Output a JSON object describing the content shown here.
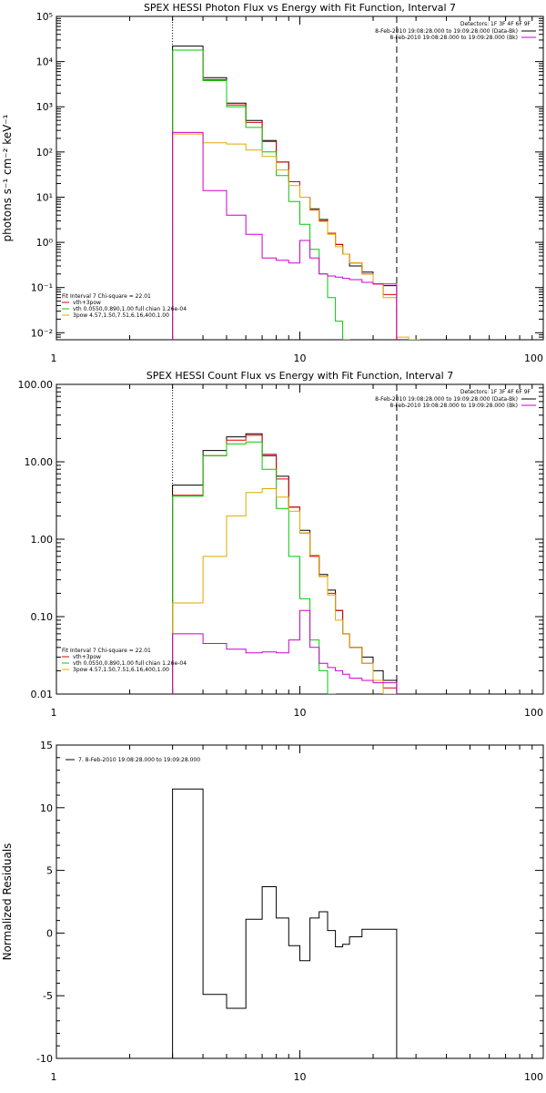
{
  "chart_data": [
    {
      "type": "line",
      "title": "SPEX HESSI Photon Flux vs Energy with Fit Function, Interval 7",
      "xlabel": "",
      "ylabel": "photons s⁻¹ cm⁻² keV⁻¹",
      "xscale": "log",
      "yscale": "log",
      "xlim": [
        1,
        100
      ],
      "ylim": [
        0.007,
        100000
      ],
      "xticks": [
        "1",
        "10",
        "100"
      ],
      "yticks": [
        "10⁻²",
        "10⁻¹",
        "10⁰",
        "10¹",
        "10²",
        "10³",
        "10⁴",
        "10⁵"
      ],
      "detectors_label": "Detectors: 1F 3F 4F 6F 9F",
      "vlines": [
        {
          "x": 3.0,
          "style": "dotted"
        },
        {
          "x": 25.0,
          "style": "dashed"
        }
      ],
      "legend_topright": [
        {
          "label": "8-Feb-2010 19:08:28.000 to 19:09:28.000 (Data-Bk)",
          "color": "#000000"
        },
        {
          "label": "8-Feb-2010 19:08:28.000 to 19:09:28.000 (Bk)",
          "color": "#cc00cc"
        }
      ],
      "legend_bottomleft": [
        {
          "label": "Fit Interval 7   Chi-square = 22.01",
          "color": null
        },
        {
          "label": "vth+3pow",
          "color": "#dd0000"
        },
        {
          "label": "vth 0.0550,0.890,1.00  full chian 1.26e-04",
          "color": "#00cc00"
        },
        {
          "label": "3pow 4.57,1.50,7.51,6.16,400,1.00",
          "color": "#ddaa00"
        }
      ],
      "bin_edges": [
        3.0,
        4.0,
        5.0,
        6.0,
        7.0,
        8.0,
        9.0,
        10.0,
        11.0,
        12.0,
        13.0,
        14.0,
        15.0,
        16.0,
        18.0,
        20.0,
        22.0,
        25.0,
        28.0,
        31.0
      ],
      "series": [
        {
          "name": "Data-Bk",
          "color": "#000000",
          "values": [
            22000,
            4400,
            1200,
            500,
            180,
            60,
            22,
            10,
            5.5,
            3.2,
            1.6,
            0.9,
            0.55,
            0.3,
            0.22,
            0.12,
            0.11
          ]
        },
        {
          "name": "vth+3pow",
          "color": "#dd0000",
          "values": [
            18000,
            4000,
            1100,
            450,
            170,
            60,
            22,
            10,
            5.2,
            3.0,
            1.6,
            0.9,
            0.55,
            0.35,
            0.2,
            0.12,
            0.07
          ]
        },
        {
          "name": "vth",
          "color": "#00cc00",
          "values": [
            18000,
            3800,
            1000,
            350,
            100,
            30,
            8,
            2.5,
            0.7,
            0.2,
            0.06,
            0.018,
            0.007,
            null,
            null,
            null,
            null
          ]
        },
        {
          "name": "3pow",
          "color": "#ddaa00",
          "values": [
            250,
            160,
            150,
            110,
            80,
            40,
            18,
            10,
            5.3,
            2.9,
            1.5,
            0.8,
            0.55,
            0.35,
            0.2,
            0.12,
            0.06,
            0.008,
            0.007
          ]
        },
        {
          "name": "Bk",
          "color": "#cc00cc",
          "values": [
            270,
            14,
            4,
            1.5,
            0.45,
            0.4,
            0.35,
            1.1,
            0.45,
            0.2,
            0.18,
            0.17,
            0.16,
            0.15,
            0.13,
            0.12,
            0.12
          ]
        }
      ]
    },
    {
      "type": "line",
      "title": "SPEX HESSI Count Flux vs Energy with Fit Function, Interval 7",
      "xlabel": "",
      "ylabel": "",
      "xscale": "log",
      "yscale": "log",
      "xlim": [
        1,
        100
      ],
      "ylim": [
        0.01,
        100
      ],
      "xticks": [
        "1",
        "10",
        "100"
      ],
      "yticks": [
        "0.01",
        "0.10",
        "1.00",
        "10.00",
        "100.00"
      ],
      "detectors_label": "Detectors: 1F 3F 4F 6F 9F",
      "vlines": [
        {
          "x": 3.0,
          "style": "dotted"
        },
        {
          "x": 25.0,
          "style": "dashed"
        }
      ],
      "legend_topright": [
        {
          "label": "8-Feb-2010 19:08:28.000 to 19:09:28.000 (Data-Bk)",
          "color": "#000000"
        },
        {
          "label": "8-Feb-2010 19:08:28.000 to 19:09:28.000 (Bk)",
          "color": "#cc00cc"
        }
      ],
      "legend_bottomleft": [
        {
          "label": "Fit Interval 7   Chi-square = 22.01",
          "color": null
        },
        {
          "label": "vth+3pow",
          "color": "#dd0000"
        },
        {
          "label": "vth 0.0550,0.890,1.00  full chian 1.26e-04",
          "color": "#00cc00"
        },
        {
          "label": "3pow 4.57,1.50,7.51,6.16,400,1.00",
          "color": "#ddaa00"
        }
      ],
      "bin_edges": [
        3.0,
        4.0,
        5.0,
        6.0,
        7.0,
        8.0,
        9.0,
        10.0,
        11.0,
        12.0,
        13.0,
        14.0,
        15.0,
        16.0,
        18.0,
        20.0,
        22.0,
        25.0
      ],
      "series": [
        {
          "name": "Data-Bk",
          "color": "#000000",
          "values": [
            5.0,
            14.0,
            21.0,
            23.0,
            12.0,
            6.5,
            2.6,
            1.3,
            0.62,
            0.35,
            0.22,
            0.12,
            0.06,
            0.04,
            0.03,
            0.02,
            0.015
          ]
        },
        {
          "name": "vth+3pow",
          "color": "#dd0000",
          "values": [
            3.7,
            12.0,
            19.0,
            22.0,
            12.5,
            6.0,
            2.6,
            1.2,
            0.6,
            0.33,
            0.2,
            0.12,
            0.06,
            0.04,
            0.025,
            0.015,
            0.012
          ]
        },
        {
          "name": "vth",
          "color": "#00cc00",
          "values": [
            3.6,
            12.0,
            17.0,
            18.0,
            8.0,
            2.5,
            0.6,
            0.17,
            0.05,
            0.02,
            0.01,
            null,
            null,
            null,
            null,
            null,
            null
          ]
        },
        {
          "name": "3pow",
          "color": "#ddaa00",
          "values": [
            0.15,
            0.6,
            2.0,
            4.0,
            4.5,
            3.5,
            2.3,
            1.2,
            0.62,
            0.33,
            0.19,
            0.09,
            0.06,
            0.04,
            0.025,
            0.015,
            0.01
          ]
        },
        {
          "name": "Bk",
          "color": "#cc00cc",
          "values": [
            0.06,
            0.045,
            0.038,
            0.034,
            0.035,
            0.034,
            0.05,
            0.12,
            0.04,
            0.025,
            0.022,
            0.02,
            0.018,
            0.016,
            0.015,
            0.014,
            0.014
          ]
        }
      ]
    },
    {
      "type": "line",
      "title": "",
      "xlabel": "",
      "ylabel": "Normalized Residuals",
      "xscale": "log",
      "yscale": "linear",
      "xlim": [
        1,
        100
      ],
      "ylim": [
        -10,
        15
      ],
      "xticks": [
        "1",
        "10",
        "100"
      ],
      "yticks": [
        "-10",
        "-5",
        "0",
        "5",
        "10",
        "15"
      ],
      "legend_topleft": [
        {
          "label": "7.  8-Feb-2010 19:08:28.000 to 19:09:28.000",
          "color": "#000000"
        }
      ],
      "bin_edges": [
        3.0,
        4.0,
        5.0,
        6.0,
        7.0,
        8.0,
        9.0,
        10.0,
        11.0,
        12.0,
        13.0,
        14.0,
        15.0,
        16.0,
        18.0,
        20.0,
        22.0,
        25.0
      ],
      "series": [
        {
          "name": "Residuals",
          "color": "#000000",
          "values": [
            11.5,
            -4.9,
            -6.0,
            1.1,
            3.7,
            1.2,
            -1.0,
            -2.2,
            1.2,
            1.7,
            0.2,
            -1.1,
            -0.9,
            -0.3,
            0.3,
            0.3,
            0.3
          ]
        }
      ]
    }
  ]
}
